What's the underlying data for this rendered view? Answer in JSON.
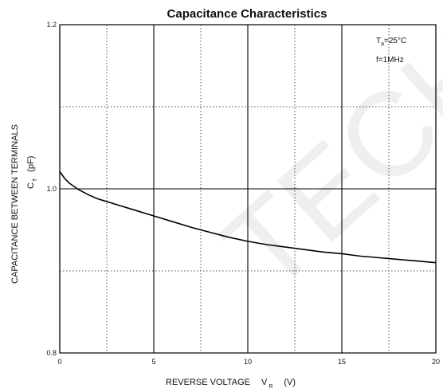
{
  "chart_data": {
    "type": "line",
    "title": "Capacitance Characteristics",
    "xlabel": "REVERSE VOLTAGE",
    "xlabel_symbol": "V",
    "xlabel_subscript": "R",
    "xlabel_unit": "(V)",
    "ylabel": "CAPACITANCE BETWEEN TERMINALS",
    "ylabel_symbol": "C",
    "ylabel_subscript": "T",
    "ylabel_unit": "(pF)",
    "xlim": [
      0,
      20
    ],
    "ylim": [
      0.8,
      1.2
    ],
    "x_major_ticks": [
      0,
      5,
      10,
      15,
      20
    ],
    "x_tick_labels": [
      "0",
      "5",
      "10",
      "15",
      "20"
    ],
    "x_minor_ticks": [
      2.5,
      7.5,
      12.5,
      17.5
    ],
    "y_major_ticks": [
      0.8,
      1.0,
      1.2
    ],
    "y_tick_labels": [
      "0.8",
      "1.0",
      "1.2"
    ],
    "y_minor_ticks": [
      0.9,
      1.1
    ],
    "grid": true,
    "conditions": {
      "temp_symbol": "T",
      "temp_subscript": "a",
      "temp_value": "=25°C",
      "freq": "f=1MHz",
      "placement": "top-right"
    },
    "series": [
      {
        "x": [
          0,
          0.25,
          0.5,
          1,
          1.5,
          2,
          3,
          4,
          5,
          6,
          7,
          8,
          9,
          10,
          11,
          12,
          13,
          14,
          15,
          16,
          17,
          18,
          19,
          20
        ],
        "y": [
          1.021,
          1.013,
          1.007,
          0.999,
          0.993,
          0.988,
          0.981,
          0.974,
          0.967,
          0.96,
          0.953,
          0.947,
          0.941,
          0.936,
          0.932,
          0.929,
          0.926,
          0.923,
          0.921,
          0.918,
          0.916,
          0.914,
          0.912,
          0.91
        ]
      }
    ]
  },
  "watermark": "TECH"
}
